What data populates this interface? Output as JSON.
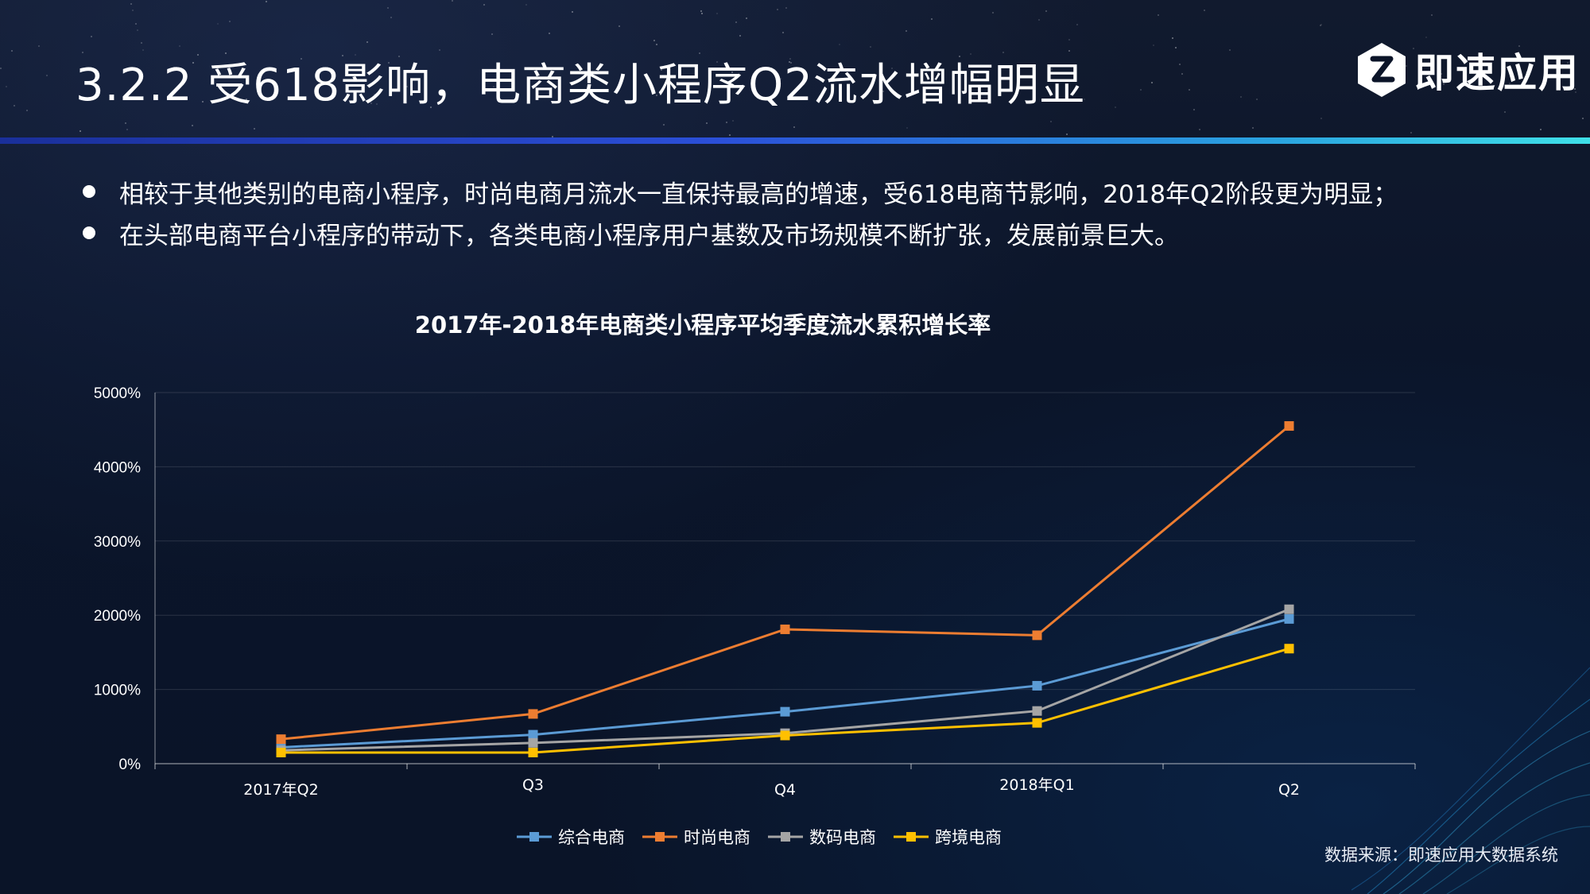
{
  "header": {
    "title": "3.2.2  受618影响，电商类小程序Q2流水增幅明显",
    "logo_text": "即速应用"
  },
  "bullets": [
    "相较于其他类别的电商小程序，时尚电商月流水一直保持最高的增速，受618电商节影响，2018年Q2阶段更为明显；",
    "在头部电商平台小程序的带动下，各类电商小程序用户基数及市场规模不断扩张，发展前景巨大。"
  ],
  "source": "数据来源：即速应用大数据系统",
  "colors": {
    "background": "#0b1428",
    "accent_bar": "#2b4fd8"
  },
  "chart_data": {
    "type": "line",
    "title": "2017年-2018年电商类小程序平均季度流水累积增长率",
    "xlabel": "",
    "ylabel": "",
    "categories": [
      "2017年Q2",
      "Q3",
      "Q4",
      "2018年Q1",
      "Q2"
    ],
    "y_ticks": [
      "0%",
      "1000%",
      "2000%",
      "3000%",
      "4000%",
      "5000%"
    ],
    "ylim": [
      0,
      5000
    ],
    "grid": true,
    "legend": "bottom",
    "series": [
      {
        "name": "综合电商",
        "color": "#5b9bd5",
        "values": [
          220,
          390,
          700,
          1050,
          1950
        ]
      },
      {
        "name": "时尚电商",
        "color": "#ed7d31",
        "values": [
          330,
          670,
          1810,
          1730,
          4550
        ]
      },
      {
        "name": "数码电商",
        "color": "#a5a5a5",
        "values": [
          180,
          280,
          410,
          710,
          2080
        ]
      },
      {
        "name": "跨境电商",
        "color": "#ffc000",
        "values": [
          150,
          150,
          380,
          550,
          1550
        ]
      }
    ]
  }
}
